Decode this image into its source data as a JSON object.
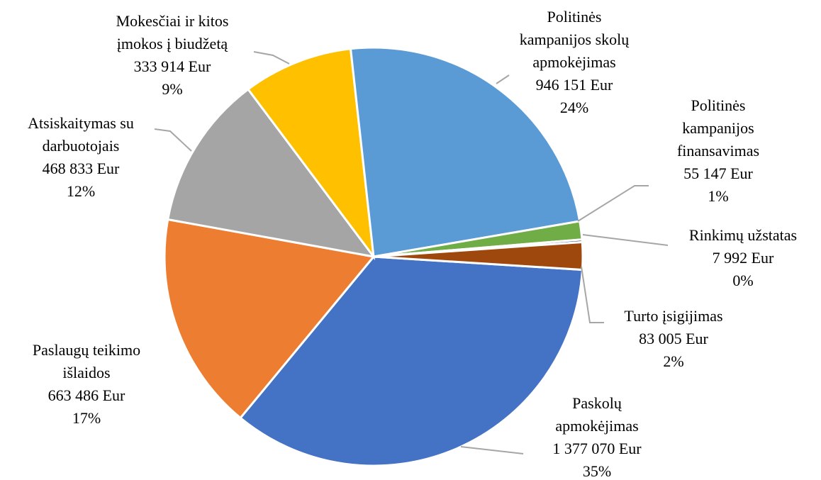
{
  "chart_data": {
    "type": "pie",
    "categories": [
      "Paskolų\napmokėjimas",
      "Paslaugų teikimo\nišlaidos",
      "Atsiskaitymas su\ndarbuotojais",
      "Mokesčiai ir kitos\nįmokos į biudžetą",
      "Politinės\nkampanijos skolų\napmokėjimas",
      "Politinės\nkampanijos\nfinansavimas",
      "Rinkimų užstatas",
      "Turto įsigijimas"
    ],
    "values": [
      1377070,
      663486,
      468833,
      333914,
      946151,
      55147,
      7992,
      83005
    ],
    "value_labels": [
      "1 377 070 Eur",
      "663 486 Eur",
      "468 833 Eur",
      "333 914 Eur",
      "946 151 Eur",
      "55 147 Eur",
      "7 992 Eur",
      "83 005 Eur"
    ],
    "percent_labels": [
      "35%",
      "17%",
      "12%",
      "9%",
      "24%",
      "1%",
      "0%",
      "2%"
    ],
    "colors": [
      "#4472c4",
      "#ed7d31",
      "#a5a5a5",
      "#ffc000",
      "#5b9bd5",
      "#70ad47",
      "#264478",
      "#9e480e"
    ]
  }
}
